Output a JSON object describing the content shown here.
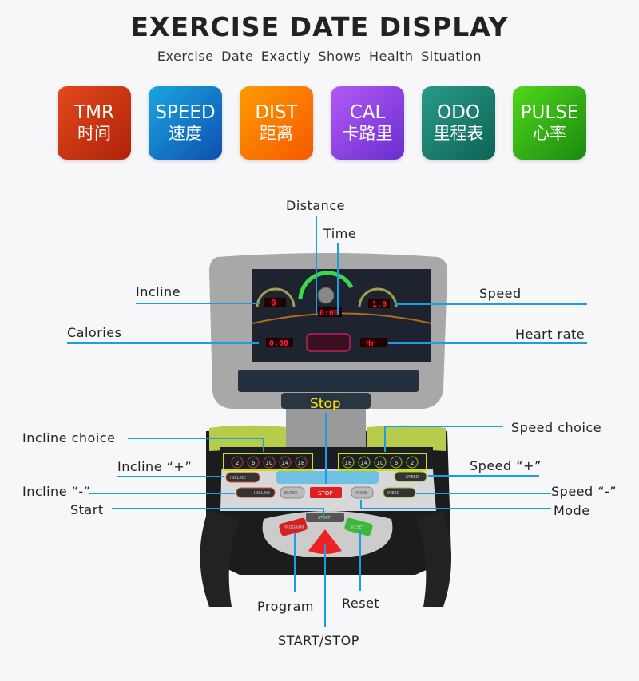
{
  "header": {
    "title": "EXERCISE DATE DISPLAY",
    "subtitle": "Exercise Date  Exactly  Shows Health Situation"
  },
  "badges": [
    {
      "en": "TMR",
      "cn": "时间",
      "color": "#c8300c"
    },
    {
      "en": "SPEED",
      "cn": "速度",
      "color": "#1466c0"
    },
    {
      "en": "DIST",
      "cn": "距离",
      "color": "#f86a00"
    },
    {
      "en": "CAL",
      "cn": "卡路里",
      "color": "#8b3fe0"
    },
    {
      "en": "ODO",
      "cn": "里程表",
      "color": "#157a68"
    },
    {
      "en": "PULSE",
      "cn": "心率",
      "color": "#2aa012"
    }
  ],
  "callouts": {
    "distance": "Distance",
    "time": "Time",
    "incline": "Incline",
    "speed": "Speed",
    "calories": "Calories",
    "heart_rate": "Heart rate",
    "stop": "Stop",
    "incline_choice": "Incline choice",
    "speed_choice": "Speed  choice",
    "incline_plus": "Incline “+”",
    "speed_plus": "Speed “+”",
    "incline_minus": "Incline “-”",
    "speed_minus": "Speed “-”",
    "start": "Start",
    "mode": "Mode",
    "program": "Program",
    "reset": "Reset",
    "start_stop": "START/STOP"
  },
  "console": {
    "incline_display": "0",
    "time_display": "0:00",
    "speed_display": "1.0",
    "calorie_display": "0.00",
    "pulse_display": "Hr",
    "incline_levels": [
      "2",
      "6",
      "10",
      "14",
      "18"
    ],
    "speed_levels": [
      "18",
      "14",
      "10",
      "6",
      "2"
    ],
    "buttons": {
      "enter": "ENTER",
      "stop": "STOP",
      "mode": "MODE",
      "incline_up": "INCLINE",
      "incline_down": "INCLINE",
      "speed_up": "SPEED",
      "speed_down": "SPEED",
      "start": "START",
      "program": "PROGRAM",
      "reset": "RESET"
    }
  },
  "colors": {
    "callout_line": "#1a9ee0",
    "stop_label": "#ffe600",
    "highlight_box": "#d4e000"
  }
}
